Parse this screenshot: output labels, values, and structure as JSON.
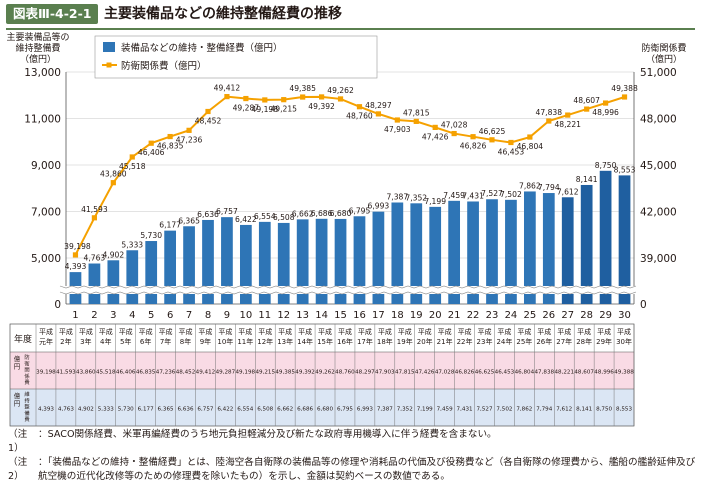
{
  "figure": {
    "id_label": "図表Ⅲ-4-2-1",
    "title": "主要装備品などの維持整備経費の推移"
  },
  "chart_data": {
    "type": "bar+line",
    "categories": [
      "1",
      "2",
      "3",
      "4",
      "5",
      "6",
      "7",
      "8",
      "9",
      "10",
      "11",
      "12",
      "13",
      "14",
      "15",
      "16",
      "17",
      "18",
      "19",
      "20",
      "21",
      "22",
      "23",
      "24",
      "25",
      "26",
      "27",
      "28",
      "29",
      "30"
    ],
    "year_labels": [
      "平成元年",
      "平成2年",
      "平成3年",
      "平成4年",
      "平成5年",
      "平成6年",
      "平成7年",
      "平成8年",
      "平成9年",
      "平成10年",
      "平成11年",
      "平成12年",
      "平成13年",
      "平成14年",
      "平成15年",
      "平成16年",
      "平成17年",
      "平成18年",
      "平成19年",
      "平成20年",
      "平成21年",
      "平成22年",
      "平成23年",
      "平成24年",
      "平成25年",
      "平成26年",
      "平成27年",
      "平成28年",
      "平成29年",
      "平成30年"
    ],
    "series": [
      {
        "name": "装備品などの維持・整備経費（億円）",
        "type": "bar",
        "axis": "left",
        "color": "#2e75b6",
        "values": [
          4393,
          4763,
          4902,
          5333,
          5730,
          6177,
          6365,
          6636,
          6757,
          6422,
          6554,
          6508,
          6662,
          6686,
          6680,
          6795,
          6993,
          7387,
          7352,
          7199,
          7459,
          7431,
          7527,
          7502,
          7862,
          7794,
          7612,
          8141,
          8750,
          8553
        ]
      },
      {
        "name": "防衛関係費（億円）",
        "type": "line",
        "axis": "right",
        "color": "#f5a100",
        "values": [
          39198,
          41593,
          43860,
          45518,
          46406,
          46835,
          47236,
          48452,
          49412,
          49287,
          49198,
          49215,
          49385,
          49392,
          49262,
          48760,
          48297,
          47903,
          47815,
          47426,
          47028,
          46826,
          46625,
          46453,
          46804,
          47838,
          48221,
          48607,
          48996,
          49388
        ]
      }
    ],
    "left_axis": {
      "label_line1": "主要装備品等の",
      "label_line2": "維持整備費",
      "unit": "（億円）",
      "ticks": [
        "13,000",
        "11,000",
        "9,000",
        "7,000",
        "5,000",
        "0"
      ],
      "tick_values": [
        13000,
        11000,
        9000,
        7000,
        5000,
        0
      ],
      "range_shown": [
        3500,
        13000
      ],
      "broken": true
    },
    "right_axis": {
      "label": "防衛関係費",
      "unit": "（億円）",
      "ticks": [
        "51,000",
        "48,000",
        "45,000",
        "42,000",
        "39,000",
        "0"
      ],
      "tick_values": [
        51000,
        48000,
        45000,
        42000,
        39000,
        0
      ],
      "range_shown": [
        36750,
        51000
      ],
      "broken": true
    },
    "gridlines": true,
    "legend_position": "top-left"
  },
  "table": {
    "corner_label": "年度",
    "row1_label": "防衛関係費",
    "row1_unit": "（億円）",
    "row2_label": "維持整備費",
    "row2_unit": "（億円）",
    "row1_values": [
      "39,198",
      "41,593",
      "43,860",
      "45,518",
      "46,406",
      "46,835",
      "47,236",
      "48,452",
      "49,412",
      "49,287",
      "49,198",
      "49,215",
      "49,385",
      "49,392",
      "49,262",
      "48,760",
      "48,297",
      "47,903",
      "47,815",
      "47,426",
      "47,028",
      "46,826",
      "46,625",
      "46,453",
      "46,804",
      "47,838",
      "48,221",
      "48,607",
      "48,996",
      "49,388"
    ],
    "row2_values": [
      "4,393",
      "4,763",
      "4,902",
      "5,333",
      "5,730",
      "6,177",
      "6,365",
      "6,636",
      "6,757",
      "6,422",
      "6,554",
      "6,508",
      "6,662",
      "6,686",
      "6,680",
      "6,795",
      "6,993",
      "7,387",
      "7,352",
      "7,199",
      "7,459",
      "7,431",
      "7,527",
      "7,502",
      "7,862",
      "7,794",
      "7,612",
      "8,141",
      "8,750",
      "8,553"
    ]
  },
  "notes": [
    {
      "marker": "（注1）",
      "text": "：SACO関係経費、米軍再編経費のうち地元負担軽減分及び新たな政府専用機導入に伴う経費を含まない。"
    },
    {
      "marker": "（注2）",
      "text": "：「装備品などの維持・整備経費」とは、陸海空各自衛隊の装備品等の修理や消耗品の代価及び役務費など（各自衛隊の修理費から、艦船の艦齢延伸及び航空機の近代化改修等のための修理費を除いたもの）を示し、金額は契約ベースの数値である。"
    }
  ],
  "colors": {
    "bar": "#2e75b6",
    "bar_recent": "#1f5fa0",
    "line": "#f5a100",
    "accent_green": "#5a7f4f",
    "table_pink": "#f9dbe5",
    "table_blue": "#dbe6f4",
    "grid": "#c8c8c8"
  }
}
